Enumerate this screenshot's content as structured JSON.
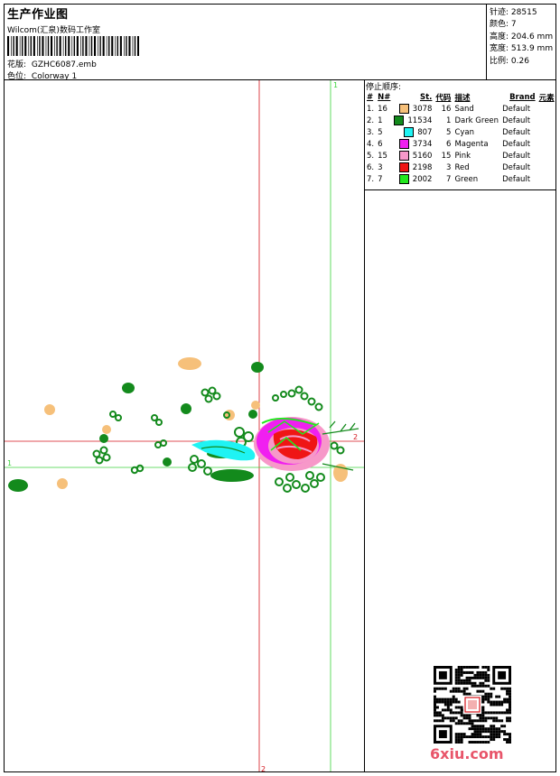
{
  "header": {
    "title": "生产作业图",
    "company": "Wilcom(汇泉)数码工作室",
    "design_label": "花版:",
    "design_file": "GZHC6087.emb",
    "colorway_label": "色位:",
    "colorway": "Colorway 1"
  },
  "stats": {
    "stitches_label": "针迹:",
    "stitches": "28515",
    "colors_label": "颜色:",
    "colors": "7",
    "height_label": "高度:",
    "height": "204.6 mm",
    "width_label": "宽度:",
    "width": "513.9 mm",
    "scale_label": "比例:",
    "scale": "0.26"
  },
  "stop_sequence": {
    "title": "停止顺序:",
    "headers": [
      "#",
      "N#",
      "St.",
      "代码",
      "描述",
      "Brand",
      "元素"
    ],
    "rows": [
      {
        "idx": "1.",
        "n": "16",
        "color": "#f6c07a",
        "st": "3078",
        "code": "16",
        "desc": "Sand",
        "brand": "Default"
      },
      {
        "idx": "2.",
        "n": "1",
        "color": "#138a1c",
        "st": "11534",
        "code": "1",
        "desc": "Dark Green",
        "brand": "Default"
      },
      {
        "idx": "3.",
        "n": "5",
        "color": "#1ff3f3",
        "st": "807",
        "code": "5",
        "desc": "Cyan",
        "brand": "Default"
      },
      {
        "idx": "4.",
        "n": "6",
        "color": "#f01ff0",
        "st": "3734",
        "code": "6",
        "desc": "Magenta",
        "brand": "Default"
      },
      {
        "idx": "5.",
        "n": "15",
        "color": "#f798c9",
        "st": "5160",
        "code": "15",
        "desc": "Pink",
        "brand": "Default"
      },
      {
        "idx": "6.",
        "n": "3",
        "color": "#ef1515",
        "st": "2198",
        "code": "3",
        "desc": "Red",
        "brand": "Default"
      },
      {
        "idx": "7.",
        "n": "7",
        "color": "#23e81f",
        "st": "2002",
        "code": "7",
        "desc": "Green",
        "brand": "Default"
      }
    ]
  },
  "plot": {
    "marker_1_left": "1",
    "marker_2_right": "2",
    "marker_2_bottom": "2",
    "marker_1_top": "1"
  },
  "watermark": {
    "site": "6xiu.com"
  }
}
